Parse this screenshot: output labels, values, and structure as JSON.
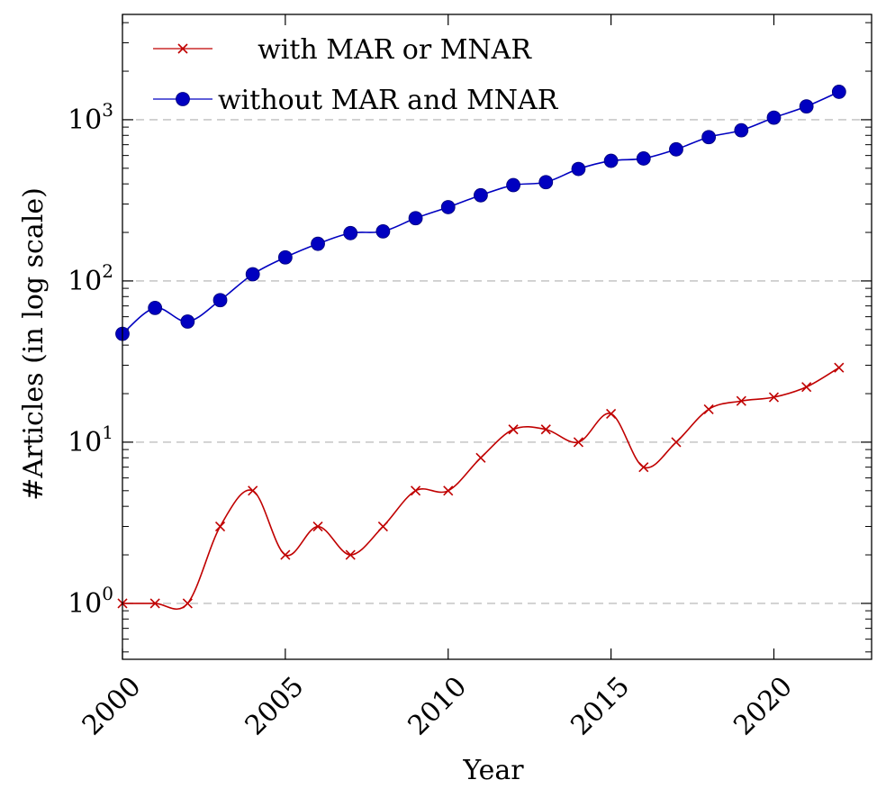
{
  "chart_data": {
    "type": "line",
    "title": "",
    "xlabel": "Year",
    "ylabel": "#Articles (in log scale)",
    "y_scale": "log",
    "xlim": [
      2000,
      2023
    ],
    "ylim": [
      0.45,
      4500
    ],
    "grid": "horizontal dashed at decades",
    "legend_position": "top-left",
    "x_ticks": [
      2000,
      2005,
      2010,
      2015,
      2020
    ],
    "x_tick_labels": [
      "2000",
      "2005",
      "2010",
      "2015",
      "2020"
    ],
    "y_ticks": [
      1,
      10,
      100,
      1000
    ],
    "y_tick_labels": [
      {
        "base": "10",
        "exp": "0"
      },
      {
        "base": "10",
        "exp": "1"
      },
      {
        "base": "10",
        "exp": "2"
      },
      {
        "base": "10",
        "exp": "3"
      }
    ],
    "x": [
      2000,
      2001,
      2002,
      2003,
      2004,
      2005,
      2006,
      2007,
      2008,
      2009,
      2010,
      2011,
      2012,
      2013,
      2014,
      2015,
      2016,
      2017,
      2018,
      2019,
      2020,
      2021,
      2022
    ],
    "series": [
      {
        "name": "with MAR or MNAR",
        "color": "#c00000",
        "marker": "cross",
        "values": [
          1,
          1,
          1,
          3,
          5,
          2,
          3,
          2,
          3,
          5,
          5,
          8,
          12,
          12,
          10,
          15,
          7,
          10,
          16,
          18,
          19,
          22,
          29
        ]
      },
      {
        "name": "without MAR and MNAR",
        "color": "#0000c0",
        "marker": "circle",
        "values": [
          47,
          68,
          56,
          76,
          110,
          140,
          170,
          198,
          203,
          245,
          287,
          340,
          393,
          410,
          495,
          556,
          575,
          655,
          780,
          860,
          1030,
          1210,
          1490
        ]
      }
    ]
  }
}
